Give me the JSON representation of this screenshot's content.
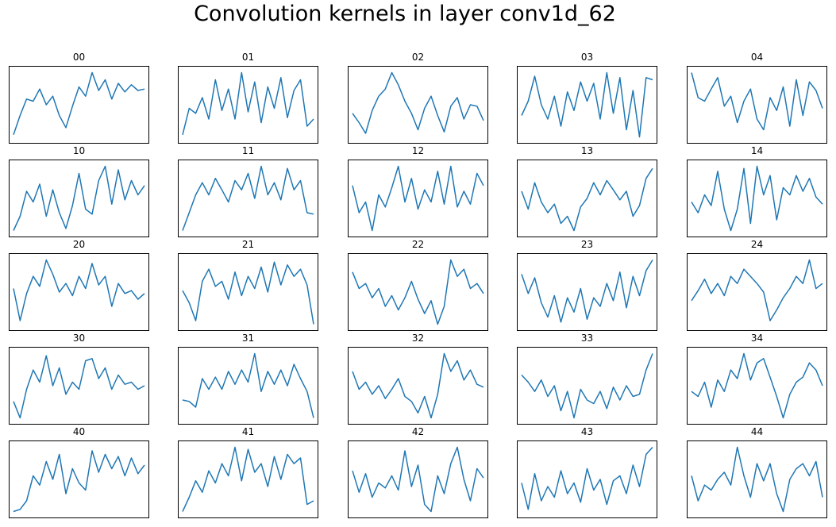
{
  "title": "Convolution kernels in layer conv1d_62",
  "style": {
    "line_color": "#1f77b4",
    "frame_color": "#000000",
    "background": "#ffffff"
  },
  "chart_data": {
    "type": "line",
    "grid": false,
    "axes_ticks_visible": false,
    "layout": {
      "rows": 5,
      "cols": 5
    },
    "ylim": [
      0,
      1
    ],
    "panels": [
      {
        "title": "00",
        "x": [
          0,
          5,
          10,
          15,
          20,
          25,
          30,
          35,
          40,
          45,
          50,
          55,
          60,
          65,
          70,
          75,
          80,
          85,
          90,
          95,
          100
        ],
        "values": [
          0.08,
          0.35,
          0.58,
          0.55,
          0.72,
          0.5,
          0.62,
          0.35,
          0.18,
          0.48,
          0.75,
          0.62,
          0.95,
          0.7,
          0.85,
          0.58,
          0.8,
          0.68,
          0.78,
          0.7,
          0.72
        ]
      },
      {
        "title": "01",
        "x": [
          0,
          5,
          10,
          15,
          20,
          25,
          30,
          35,
          40,
          45,
          50,
          55,
          60,
          65,
          70,
          75,
          80,
          85,
          90,
          95,
          100
        ],
        "values": [
          0.08,
          0.45,
          0.38,
          0.6,
          0.3,
          0.85,
          0.42,
          0.72,
          0.3,
          0.95,
          0.4,
          0.82,
          0.25,
          0.75,
          0.45,
          0.88,
          0.32,
          0.7,
          0.85,
          0.2,
          0.3
        ]
      },
      {
        "title": "02",
        "x": [
          0,
          5,
          10,
          15,
          20,
          25,
          30,
          35,
          40,
          45,
          50,
          55,
          60,
          65,
          70,
          75,
          80,
          85,
          90,
          95,
          100
        ],
        "values": [
          0.38,
          0.25,
          0.1,
          0.42,
          0.62,
          0.72,
          0.95,
          0.78,
          0.55,
          0.38,
          0.15,
          0.45,
          0.62,
          0.35,
          0.12,
          0.48,
          0.6,
          0.3,
          0.5,
          0.48,
          0.28
        ]
      },
      {
        "title": "03",
        "x": [
          0,
          5,
          10,
          15,
          20,
          25,
          30,
          35,
          40,
          45,
          50,
          55,
          60,
          65,
          70,
          75,
          80,
          85,
          90,
          95,
          100
        ],
        "values": [
          0.35,
          0.55,
          0.9,
          0.5,
          0.3,
          0.62,
          0.2,
          0.68,
          0.42,
          0.82,
          0.55,
          0.8,
          0.3,
          0.95,
          0.38,
          0.88,
          0.15,
          0.7,
          0.05,
          0.88,
          0.85
        ]
      },
      {
        "title": "04",
        "x": [
          0,
          5,
          10,
          15,
          20,
          25,
          30,
          35,
          40,
          45,
          50,
          55,
          60,
          65,
          70,
          75,
          80,
          85,
          90,
          95,
          100
        ],
        "values": [
          0.95,
          0.6,
          0.55,
          0.72,
          0.88,
          0.48,
          0.62,
          0.25,
          0.55,
          0.72,
          0.3,
          0.15,
          0.6,
          0.42,
          0.75,
          0.2,
          0.85,
          0.35,
          0.82,
          0.7,
          0.45
        ]
      },
      {
        "title": "10",
        "x": [
          0,
          5,
          10,
          15,
          20,
          25,
          30,
          35,
          40,
          45,
          50,
          55,
          60,
          65,
          70,
          75,
          80,
          85,
          90,
          95,
          100
        ],
        "values": [
          0.05,
          0.25,
          0.6,
          0.45,
          0.7,
          0.25,
          0.62,
          0.3,
          0.08,
          0.4,
          0.85,
          0.35,
          0.28,
          0.75,
          0.95,
          0.42,
          0.9,
          0.48,
          0.75,
          0.55,
          0.68
        ]
      },
      {
        "title": "11",
        "x": [
          0,
          5,
          10,
          15,
          20,
          25,
          30,
          35,
          40,
          45,
          50,
          55,
          60,
          65,
          70,
          75,
          80,
          85,
          90,
          95,
          100
        ],
        "values": [
          0.05,
          0.3,
          0.55,
          0.72,
          0.55,
          0.78,
          0.62,
          0.45,
          0.75,
          0.62,
          0.85,
          0.5,
          0.95,
          0.55,
          0.72,
          0.48,
          0.92,
          0.62,
          0.75,
          0.3,
          0.28
        ]
      },
      {
        "title": "12",
        "x": [
          0,
          5,
          10,
          15,
          20,
          25,
          30,
          35,
          40,
          45,
          50,
          55,
          60,
          65,
          70,
          75,
          80,
          85,
          90,
          95,
          100
        ],
        "values": [
          0.68,
          0.3,
          0.45,
          0.05,
          0.55,
          0.38,
          0.65,
          0.95,
          0.45,
          0.78,
          0.35,
          0.62,
          0.45,
          0.88,
          0.42,
          0.95,
          0.38,
          0.6,
          0.42,
          0.85,
          0.68
        ]
      },
      {
        "title": "13",
        "x": [
          0,
          5,
          10,
          15,
          20,
          25,
          30,
          35,
          40,
          45,
          50,
          55,
          60,
          65,
          70,
          75,
          80,
          85,
          90,
          95,
          100
        ],
        "values": [
          0.6,
          0.35,
          0.72,
          0.45,
          0.3,
          0.42,
          0.15,
          0.25,
          0.05,
          0.38,
          0.5,
          0.72,
          0.55,
          0.75,
          0.62,
          0.48,
          0.6,
          0.25,
          0.4,
          0.78,
          0.92
        ]
      },
      {
        "title": "14",
        "x": [
          0,
          5,
          10,
          15,
          20,
          25,
          30,
          35,
          40,
          45,
          50,
          55,
          60,
          65,
          70,
          75,
          80,
          85,
          90,
          95,
          100
        ],
        "values": [
          0.45,
          0.3,
          0.55,
          0.4,
          0.88,
          0.35,
          0.05,
          0.35,
          0.92,
          0.15,
          0.95,
          0.55,
          0.82,
          0.2,
          0.65,
          0.55,
          0.82,
          0.6,
          0.78,
          0.52,
          0.42
        ]
      },
      {
        "title": "20",
        "x": [
          0,
          5,
          10,
          15,
          20,
          25,
          30,
          35,
          40,
          45,
          50,
          55,
          60,
          65,
          70,
          75,
          80,
          85,
          90,
          95,
          100
        ],
        "values": [
          0.55,
          0.1,
          0.48,
          0.72,
          0.58,
          0.95,
          0.75,
          0.5,
          0.62,
          0.45,
          0.72,
          0.55,
          0.9,
          0.6,
          0.72,
          0.3,
          0.62,
          0.48,
          0.52,
          0.4,
          0.48
        ]
      },
      {
        "title": "21",
        "x": [
          0,
          5,
          10,
          15,
          20,
          25,
          30,
          35,
          40,
          45,
          50,
          55,
          60,
          65,
          70,
          75,
          80,
          85,
          90,
          95,
          100
        ],
        "values": [
          0.52,
          0.35,
          0.1,
          0.65,
          0.82,
          0.58,
          0.65,
          0.4,
          0.78,
          0.45,
          0.72,
          0.55,
          0.85,
          0.5,
          0.92,
          0.6,
          0.88,
          0.72,
          0.82,
          0.6,
          0.05
        ]
      },
      {
        "title": "22",
        "x": [
          0,
          5,
          10,
          15,
          20,
          25,
          30,
          35,
          40,
          45,
          50,
          55,
          60,
          65,
          70,
          75,
          80,
          85,
          90,
          95,
          100
        ],
        "values": [
          0.78,
          0.55,
          0.62,
          0.42,
          0.55,
          0.3,
          0.45,
          0.25,
          0.42,
          0.65,
          0.4,
          0.2,
          0.38,
          0.05,
          0.3,
          0.95,
          0.72,
          0.82,
          0.55,
          0.62,
          0.48
        ]
      },
      {
        "title": "23",
        "x": [
          0,
          5,
          10,
          15,
          20,
          25,
          30,
          35,
          40,
          45,
          50,
          55,
          60,
          65,
          70,
          75,
          80,
          85,
          90,
          95,
          100
        ],
        "values": [
          0.75,
          0.48,
          0.7,
          0.35,
          0.15,
          0.45,
          0.08,
          0.42,
          0.22,
          0.55,
          0.12,
          0.42,
          0.3,
          0.62,
          0.38,
          0.78,
          0.28,
          0.72,
          0.45,
          0.8,
          0.95
        ]
      },
      {
        "title": "24",
        "x": [
          0,
          5,
          10,
          15,
          20,
          25,
          30,
          35,
          40,
          45,
          50,
          55,
          60,
          65,
          70,
          75,
          80,
          85,
          90,
          95,
          100
        ],
        "values": [
          0.38,
          0.52,
          0.68,
          0.48,
          0.62,
          0.45,
          0.72,
          0.62,
          0.82,
          0.72,
          0.62,
          0.5,
          0.1,
          0.25,
          0.42,
          0.55,
          0.72,
          0.62,
          0.95,
          0.55,
          0.62
        ]
      },
      {
        "title": "30",
        "x": [
          0,
          5,
          10,
          15,
          20,
          25,
          30,
          35,
          40,
          45,
          50,
          55,
          60,
          65,
          70,
          75,
          80,
          85,
          90,
          95,
          100
        ],
        "values": [
          0.28,
          0.05,
          0.45,
          0.72,
          0.55,
          0.92,
          0.5,
          0.75,
          0.38,
          0.55,
          0.45,
          0.85,
          0.88,
          0.6,
          0.75,
          0.45,
          0.65,
          0.52,
          0.55,
          0.45,
          0.5
        ]
      },
      {
        "title": "31",
        "x": [
          0,
          5,
          10,
          15,
          20,
          25,
          30,
          35,
          40,
          45,
          50,
          55,
          60,
          65,
          70,
          75,
          80,
          85,
          90,
          95,
          100
        ],
        "values": [
          0.3,
          0.28,
          0.2,
          0.6,
          0.45,
          0.62,
          0.45,
          0.7,
          0.52,
          0.72,
          0.55,
          0.95,
          0.42,
          0.7,
          0.52,
          0.72,
          0.5,
          0.8,
          0.6,
          0.42,
          0.05
        ]
      },
      {
        "title": "32",
        "x": [
          0,
          5,
          10,
          15,
          20,
          25,
          30,
          35,
          40,
          45,
          50,
          55,
          60,
          65,
          70,
          75,
          80,
          85,
          90,
          95,
          100
        ],
        "values": [
          0.7,
          0.45,
          0.55,
          0.38,
          0.5,
          0.32,
          0.45,
          0.6,
          0.35,
          0.28,
          0.12,
          0.35,
          0.05,
          0.38,
          0.95,
          0.7,
          0.85,
          0.58,
          0.72,
          0.52,
          0.48
        ]
      },
      {
        "title": "33",
        "x": [
          0,
          5,
          10,
          15,
          20,
          25,
          30,
          35,
          40,
          45,
          50,
          55,
          60,
          65,
          70,
          75,
          80,
          85,
          90,
          95,
          100
        ],
        "values": [
          0.65,
          0.55,
          0.42,
          0.58,
          0.35,
          0.5,
          0.15,
          0.42,
          0.05,
          0.45,
          0.3,
          0.25,
          0.42,
          0.18,
          0.48,
          0.3,
          0.5,
          0.35,
          0.38,
          0.72,
          0.95
        ]
      },
      {
        "title": "34",
        "x": [
          0,
          5,
          10,
          15,
          20,
          25,
          30,
          35,
          40,
          45,
          50,
          55,
          60,
          65,
          70,
          75,
          80,
          85,
          90,
          95,
          100
        ],
        "values": [
          0.42,
          0.35,
          0.55,
          0.2,
          0.58,
          0.42,
          0.72,
          0.6,
          0.95,
          0.58,
          0.82,
          0.88,
          0.62,
          0.35,
          0.05,
          0.38,
          0.55,
          0.62,
          0.82,
          0.72,
          0.5
        ]
      },
      {
        "title": "40",
        "x": [
          0,
          5,
          10,
          15,
          20,
          25,
          30,
          35,
          40,
          45,
          50,
          55,
          60,
          65,
          70,
          75,
          80,
          85,
          90,
          95,
          100
        ],
        "values": [
          0.05,
          0.08,
          0.2,
          0.55,
          0.42,
          0.75,
          0.5,
          0.85,
          0.3,
          0.65,
          0.45,
          0.35,
          0.9,
          0.6,
          0.85,
          0.65,
          0.82,
          0.55,
          0.8,
          0.58,
          0.7
        ]
      },
      {
        "title": "41",
        "x": [
          0,
          5,
          10,
          15,
          20,
          25,
          30,
          35,
          40,
          45,
          50,
          55,
          60,
          65,
          70,
          75,
          80,
          85,
          90,
          95,
          100
        ],
        "values": [
          0.05,
          0.25,
          0.48,
          0.32,
          0.62,
          0.45,
          0.72,
          0.55,
          0.95,
          0.48,
          0.92,
          0.6,
          0.72,
          0.4,
          0.82,
          0.5,
          0.85,
          0.72,
          0.8,
          0.15,
          0.2
        ]
      },
      {
        "title": "42",
        "x": [
          0,
          5,
          10,
          15,
          20,
          25,
          30,
          35,
          40,
          45,
          50,
          55,
          60,
          65,
          70,
          75,
          80,
          85,
          90,
          95,
          100
        ],
        "values": [
          0.62,
          0.32,
          0.58,
          0.25,
          0.45,
          0.38,
          0.55,
          0.35,
          0.9,
          0.4,
          0.7,
          0.15,
          0.05,
          0.55,
          0.3,
          0.72,
          0.95,
          0.5,
          0.2,
          0.65,
          0.52
        ]
      },
      {
        "title": "43",
        "x": [
          0,
          5,
          10,
          15,
          20,
          25,
          30,
          35,
          40,
          45,
          50,
          55,
          60,
          65,
          70,
          75,
          80,
          85,
          90,
          95,
          100
        ],
        "values": [
          0.45,
          0.08,
          0.58,
          0.2,
          0.4,
          0.25,
          0.62,
          0.3,
          0.45,
          0.18,
          0.65,
          0.35,
          0.5,
          0.15,
          0.48,
          0.55,
          0.3,
          0.7,
          0.4,
          0.85,
          0.95
        ]
      },
      {
        "title": "44",
        "x": [
          0,
          5,
          10,
          15,
          20,
          25,
          30,
          35,
          40,
          45,
          50,
          55,
          60,
          65,
          70,
          75,
          80,
          85,
          90,
          95,
          100
        ],
        "values": [
          0.55,
          0.2,
          0.42,
          0.35,
          0.5,
          0.6,
          0.42,
          0.95,
          0.55,
          0.25,
          0.72,
          0.48,
          0.72,
          0.3,
          0.05,
          0.5,
          0.65,
          0.72,
          0.55,
          0.75,
          0.25
        ]
      }
    ]
  }
}
